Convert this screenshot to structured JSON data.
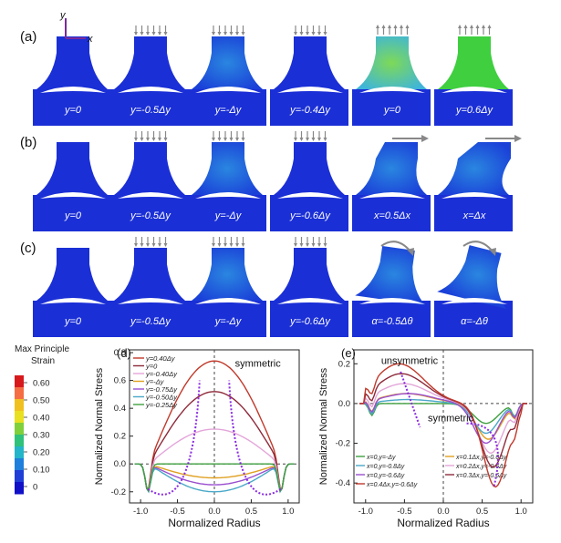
{
  "panels": {
    "a": {
      "label": "(a)",
      "captions": [
        "y=0",
        "y=-0.5Δy",
        "y=-Δy",
        "y=-0.4Δy",
        "y=0",
        "y=0.6Δy"
      ]
    },
    "b": {
      "label": "(b)",
      "captions": [
        "y=0",
        "y=-0.5Δy",
        "y=-Δy",
        "y=-0.6Δy",
        "x=0.5Δx",
        "x=Δx"
      ]
    },
    "c": {
      "label": "(c)",
      "captions": [
        "y=0",
        "y=-0.5Δy",
        "y=-Δy",
        "y=-0.6Δy",
        "α=-0.5Δθ",
        "α=-Δθ"
      ]
    }
  },
  "axis_labels": {
    "y": "y",
    "x": "x"
  },
  "colorbar": {
    "title_line1": "Max Principle",
    "title_line2": "Strain",
    "ticks": [
      "0.60",
      "0.50",
      "0.40",
      "0.30",
      "0.20",
      "0.10",
      "0"
    ],
    "colors": [
      "#d7191c",
      "#f46d43",
      "#f0c020",
      "#e8e020",
      "#7fd03a",
      "#2fc27a",
      "#23b5c9",
      "#1e7fdc",
      "#1f3fd6",
      "#1010c8"
    ]
  },
  "chart_data": [
    {
      "id": "d",
      "label": "(d)",
      "type": "line",
      "xlabel": "Normalized Radius",
      "ylabel": "Normalized Normal Stress",
      "xlim": [
        -1.15,
        1.15
      ],
      "ylim": [
        -0.28,
        0.82
      ],
      "xticks": [
        "-1.0",
        "-0.5",
        "0.0",
        "0.5",
        "1.0"
      ],
      "yticks": [
        "-0.2",
        "0.0",
        "0.2",
        "0.4",
        "0.6",
        "0.8"
      ],
      "annotation": "symmetric",
      "series": [
        {
          "name": "y=0.40Δy",
          "color": "#c0392b",
          "peak": 0.74
        },
        {
          "name": "y=0",
          "color": "#8e2a3a",
          "peak": 0.52
        },
        {
          "name": "y=-0.40Δy",
          "color": "#e3a6d9",
          "peak": 0.25
        },
        {
          "name": "y=-Δy",
          "color": "#e0a020",
          "peak": -0.1
        },
        {
          "name": "y=-0.75Δy",
          "color": "#9a4fcf",
          "peak": -0.15
        },
        {
          "name": "y=-0.50Δy",
          "color": "#4aa8c8",
          "peak": -0.2
        },
        {
          "name": "y=-0.25Δy",
          "color": "#3f9f3f",
          "peak": 0.0
        }
      ]
    },
    {
      "id": "e",
      "label": "(e)",
      "type": "line",
      "xlabel": "Normalized Radius",
      "ylabel": "Normalized Normal Stress",
      "xlim": [
        -1.15,
        1.15
      ],
      "ylim": [
        -0.5,
        0.27
      ],
      "xticks": [
        "-1.0",
        "-0.5",
        "0.0",
        "0.5",
        "1.0"
      ],
      "yticks": [
        "0.2",
        "0.0",
        "-0.2",
        "-0.4"
      ],
      "annotation_top": "unsymmetric",
      "annotation_bottom": "symmetric",
      "series": [
        {
          "name": "x=0,y=-Δy",
          "color": "#3f9f3f"
        },
        {
          "name": "x=0.1Δx,y=-0.6Δy",
          "color": "#e0a020"
        },
        {
          "name": "x=0,y=-0.8Δy",
          "color": "#4aa8c8"
        },
        {
          "name": "x=0.2Δx,y=-0.6Δy",
          "color": "#e3a6d9"
        },
        {
          "name": "x=0,y=-0.6Δy",
          "color": "#9a4fcf"
        },
        {
          "name": "x=0.3Δx,y=-0.6Δy",
          "color": "#8e2a3a"
        },
        {
          "name": "x=0.4Δx,y=-0.6Δy",
          "color": "#c0392b"
        }
      ]
    }
  ]
}
